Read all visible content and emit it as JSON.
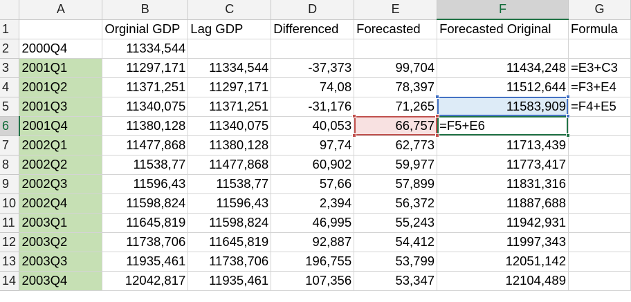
{
  "columns": [
    "A",
    "B",
    "C",
    "D",
    "E",
    "F",
    "G"
  ],
  "active_column": "F",
  "active_row": "6",
  "rows": [
    {
      "n": "1",
      "cells": [
        "",
        "Orginial GDP",
        "Lag GDP",
        "Differenced",
        "Forecasted",
        "Forecasted Original",
        "Formula"
      ]
    },
    {
      "n": "2",
      "cells": [
        "2000Q4",
        "11334,544",
        "",
        "",
        "",
        "",
        ""
      ]
    },
    {
      "n": "3",
      "cells": [
        "2001Q1",
        "11297,171",
        "11334,544",
        "-37,373",
        "99,704",
        "11434,248",
        "=E3+C3"
      ]
    },
    {
      "n": "4",
      "cells": [
        "2001Q2",
        "11371,251",
        "11297,171",
        "74,08",
        "78,397",
        "11512,644",
        "=F3+E4"
      ]
    },
    {
      "n": "5",
      "cells": [
        "2001Q3",
        "11340,075",
        "11371,251",
        "-31,176",
        "71,265",
        "11583,909",
        "=F4+E5"
      ]
    },
    {
      "n": "6",
      "cells": [
        "2001Q4",
        "11380,128",
        "11340,075",
        "40,053",
        "66,757",
        "=F5+E6",
        ""
      ]
    },
    {
      "n": "7",
      "cells": [
        "2002Q1",
        "11477,868",
        "11380,128",
        "97,74",
        "62,773",
        "11713,439",
        ""
      ]
    },
    {
      "n": "8",
      "cells": [
        "2002Q2",
        "11538,77",
        "11477,868",
        "60,902",
        "59,977",
        "11773,417",
        ""
      ]
    },
    {
      "n": "9",
      "cells": [
        "2002Q3",
        "11596,43",
        "11538,77",
        "57,66",
        "57,899",
        "11831,316",
        ""
      ]
    },
    {
      "n": "10",
      "cells": [
        "2002Q4",
        "11598,824",
        "11596,43",
        "2,394",
        "56,372",
        "11887,688",
        ""
      ]
    },
    {
      "n": "11",
      "cells": [
        "2003Q1",
        "11645,819",
        "11598,824",
        "46,995",
        "55,243",
        "11942,931",
        ""
      ]
    },
    {
      "n": "12",
      "cells": [
        "2003Q2",
        "11738,706",
        "11645,819",
        "92,887",
        "54,412",
        "11997,343",
        ""
      ]
    },
    {
      "n": "13",
      "cells": [
        "2003Q3",
        "11935,461",
        "11738,706",
        "196,755",
        "53,799",
        "12051,142",
        ""
      ]
    },
    {
      "n": "14",
      "cells": [
        "2003Q4",
        "12042,817",
        "11935,461",
        "107,356",
        "53,347",
        "12104,489",
        ""
      ]
    }
  ],
  "colors": {
    "quarter_fill": "#c6e0b4",
    "reference_blue": "#4472c4",
    "reference_red": "#c0504d",
    "active_green": "#217346"
  }
}
